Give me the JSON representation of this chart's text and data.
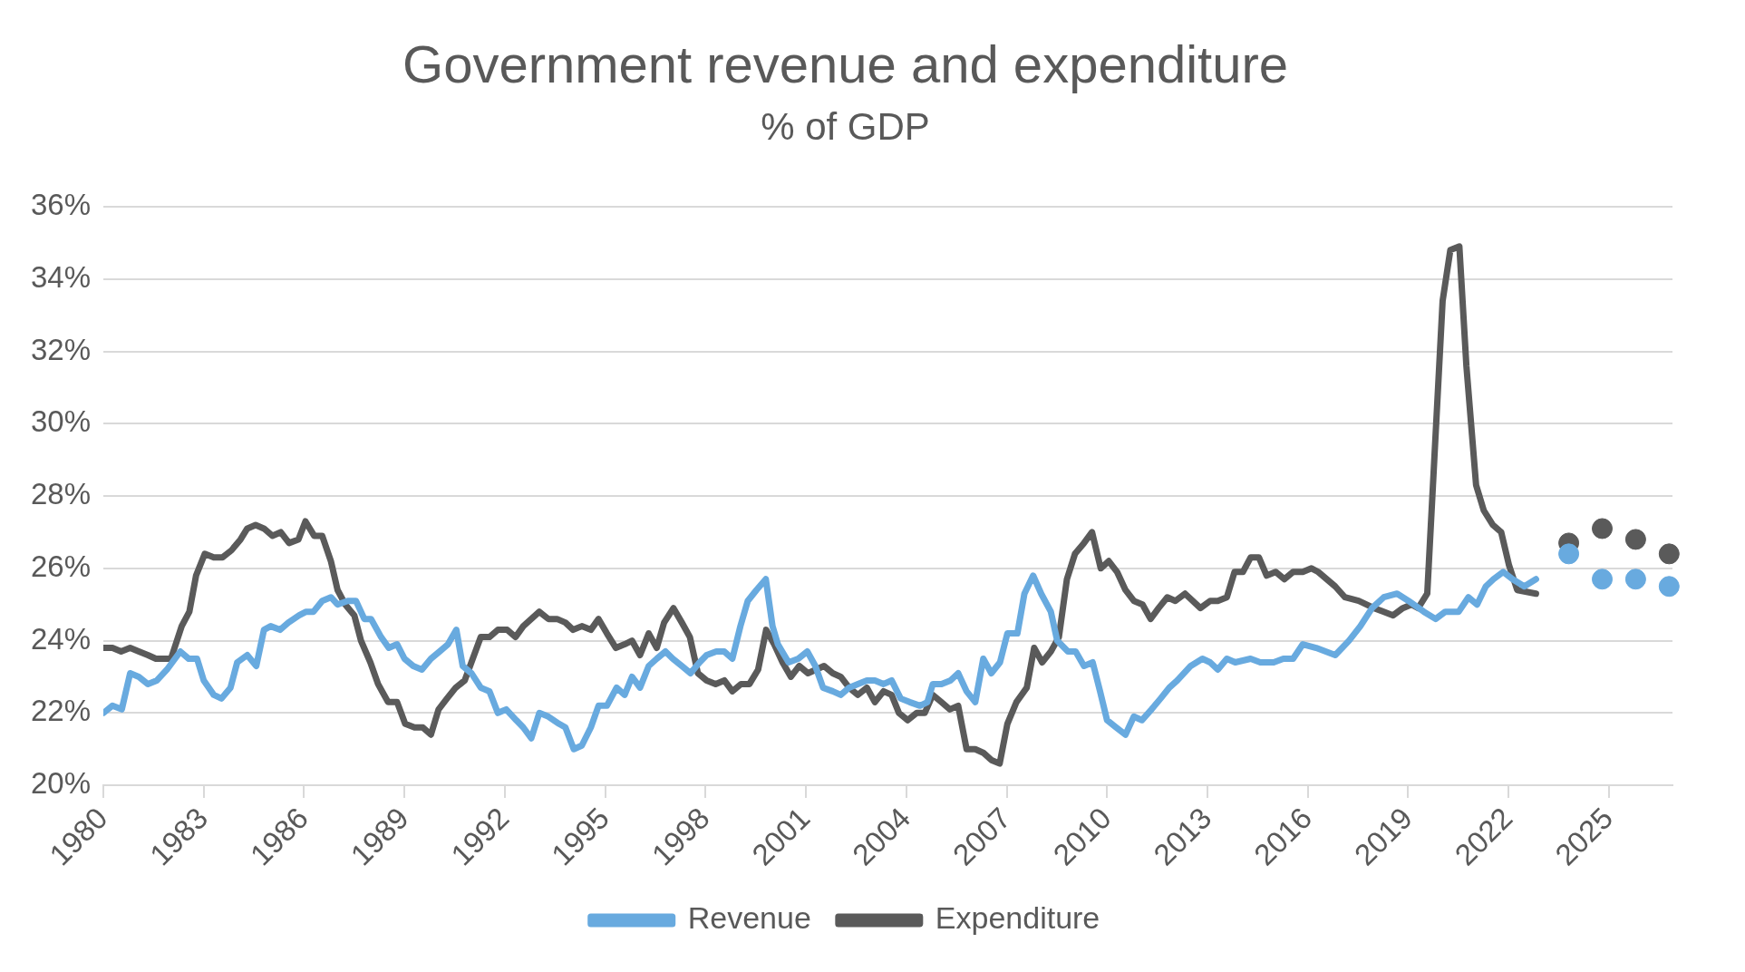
{
  "chart_data": {
    "type": "line",
    "title": "Government revenue and expenditure",
    "subtitle": "% of GDP",
    "xlim": [
      1980,
      2026.9
    ],
    "xticks": [
      1980,
      1983,
      1986,
      1989,
      1992,
      1995,
      1998,
      2001,
      2004,
      2007,
      2010,
      2013,
      2016,
      2019,
      2022,
      2025
    ],
    "ylim": [
      20,
      36
    ],
    "yticks": [
      {
        "value": 20,
        "label": "20%"
      },
      {
        "value": 22,
        "label": "22%"
      },
      {
        "value": 24,
        "label": "24%"
      },
      {
        "value": 26,
        "label": "26%"
      },
      {
        "value": 28,
        "label": "28%"
      },
      {
        "value": 30,
        "label": "30%"
      },
      {
        "value": 32,
        "label": "32%"
      },
      {
        "value": 34,
        "label": "34%"
      },
      {
        "value": 36,
        "label": "36%"
      }
    ],
    "grid": "y",
    "legend": "bottom",
    "line_style": "solid",
    "series": [
      {
        "name": "Revenue",
        "type": "line",
        "marker": "none",
        "color": "#68aadf",
        "x": [
          1980.0,
          1980.27,
          1980.55,
          1980.8,
          1981.06,
          1981.33,
          1981.6,
          1981.9,
          1982.3,
          1982.55,
          1982.8,
          1983.0,
          1983.3,
          1983.53,
          1983.8,
          1984.0,
          1984.3,
          1984.57,
          1984.8,
          1985.0,
          1985.28,
          1985.53,
          1985.85,
          1986.06,
          1986.28,
          1986.54,
          1986.8,
          1987.0,
          1987.3,
          1987.55,
          1987.8,
          1988.0,
          1988.3,
          1988.53,
          1988.78,
          1989.0,
          1989.26,
          1989.52,
          1989.79,
          1990.05,
          1990.3,
          1990.55,
          1990.74,
          1991.0,
          1991.28,
          1991.54,
          1991.79,
          1992.04,
          1992.34,
          1992.55,
          1992.79,
          1993.03,
          1993.3,
          1993.62,
          1993.81,
          1994.06,
          1994.3,
          1994.57,
          1994.8,
          1995.05,
          1995.34,
          1995.58,
          1995.8,
          1996.04,
          1996.3,
          1996.54,
          1996.8,
          1997.02,
          1997.29,
          1997.55,
          1997.82,
          1998.03,
          1998.32,
          1998.56,
          1998.8,
          1999.04,
          1999.26,
          1999.52,
          1999.8,
          2000.0,
          2000.16,
          2000.48,
          2000.77,
          2001.04,
          2001.28,
          2001.51,
          2001.8,
          2002.04,
          2002.29,
          2002.55,
          2002.82,
          2003.06,
          2003.32,
          2003.56,
          2003.83,
          2004.1,
          2004.41,
          2004.63,
          2004.79,
          2005.05,
          2005.32,
          2005.55,
          2005.8,
          2006.06,
          2006.3,
          2006.54,
          2006.8,
          2007.02,
          2007.32,
          2007.53,
          2007.79,
          2008.03,
          2008.32,
          2008.51,
          2008.83,
          2009.06,
          2009.31,
          2009.57,
          2009.79,
          2010.0,
          2010.27,
          2010.55,
          2010.8,
          2011.04,
          2011.33,
          2011.6,
          2011.86,
          2012.1,
          2012.5,
          2012.85,
          2013.08,
          2013.31,
          2013.58,
          2013.83,
          2014.29,
          2014.58,
          2014.98,
          2015.27,
          2015.56,
          2015.85,
          2016.25,
          2016.82,
          2017.23,
          2017.57,
          2017.92,
          2018.27,
          2018.67,
          2019.01,
          2019.47,
          2019.82,
          2020.11,
          2020.51,
          2020.8,
          2021.06,
          2021.32,
          2021.55,
          2021.84,
          2022.12,
          2022.47,
          2022.82
        ],
        "values": [
          22.0,
          22.2,
          22.1,
          23.1,
          23.0,
          22.8,
          22.9,
          23.2,
          23.7,
          23.5,
          23.5,
          22.9,
          22.5,
          22.4,
          22.7,
          23.4,
          23.6,
          23.3,
          24.3,
          24.4,
          24.3,
          24.5,
          24.7,
          24.8,
          24.8,
          25.1,
          25.2,
          25.0,
          25.1,
          25.1,
          24.6,
          24.6,
          24.1,
          23.8,
          23.9,
          23.5,
          23.3,
          23.2,
          23.5,
          23.7,
          23.9,
          24.3,
          23.3,
          23.1,
          22.7,
          22.6,
          22.0,
          22.1,
          21.8,
          21.6,
          21.3,
          22.0,
          21.9,
          21.7,
          21.6,
          21.0,
          21.1,
          21.6,
          22.2,
          22.2,
          22.7,
          22.5,
          23.0,
          22.7,
          23.3,
          23.5,
          23.7,
          23.5,
          23.3,
          23.1,
          23.4,
          23.6,
          23.7,
          23.7,
          23.5,
          24.4,
          25.1,
          25.4,
          25.7,
          24.4,
          23.9,
          23.4,
          23.5,
          23.7,
          23.3,
          22.7,
          22.6,
          22.5,
          22.7,
          22.8,
          22.9,
          22.9,
          22.8,
          22.9,
          22.4,
          22.3,
          22.2,
          22.3,
          22.8,
          22.8,
          22.9,
          23.1,
          22.6,
          22.3,
          23.5,
          23.1,
          23.4,
          24.2,
          24.2,
          25.3,
          25.8,
          25.3,
          24.8,
          24.0,
          23.7,
          23.7,
          23.3,
          23.4,
          22.6,
          21.8,
          21.6,
          21.4,
          21.9,
          21.8,
          22.1,
          22.4,
          22.7,
          22.9,
          23.3,
          23.5,
          23.4,
          23.2,
          23.5,
          23.4,
          23.5,
          23.4,
          23.4,
          23.5,
          23.5,
          23.9,
          23.8,
          23.6,
          24.0,
          24.4,
          24.9,
          25.2,
          25.3,
          25.1,
          24.8,
          24.6,
          24.8,
          24.8,
          25.2,
          25.0,
          25.5,
          25.7,
          25.9,
          25.7,
          25.5,
          25.7
        ]
      },
      {
        "name": "Expenditure",
        "type": "line",
        "marker": "none",
        "color": "#5a5a5a",
        "x": [
          1980.0,
          1980.27,
          1980.53,
          1980.8,
          1981.06,
          1981.33,
          1981.57,
          1981.8,
          1982.02,
          1982.34,
          1982.57,
          1982.77,
          1983.03,
          1983.3,
          1983.56,
          1983.83,
          1984.1,
          1984.3,
          1984.55,
          1984.8,
          1985.05,
          1985.3,
          1985.55,
          1985.83,
          1986.04,
          1986.3,
          1986.54,
          1986.8,
          1987.0,
          1987.23,
          1987.5,
          1987.7,
          1987.98,
          1988.21,
          1988.51,
          1988.78,
          1989.02,
          1989.3,
          1989.55,
          1989.79,
          1990.02,
          1990.27,
          1990.53,
          1990.8,
          1991.04,
          1991.28,
          1991.54,
          1991.79,
          1992.07,
          1992.32,
          1992.55,
          1992.79,
          1993.03,
          1993.3,
          1993.56,
          1993.81,
          1994.04,
          1994.3,
          1994.57,
          1994.8,
          1995.05,
          1995.32,
          1995.58,
          1995.8,
          1996.04,
          1996.3,
          1996.54,
          1996.76,
          1997.04,
          1997.29,
          1997.53,
          1997.77,
          1998.03,
          1998.3,
          1998.56,
          1998.8,
          1999.06,
          1999.31,
          1999.57,
          1999.81,
          2000.05,
          2000.3,
          2000.55,
          2000.8,
          2001.06,
          2001.3,
          2001.54,
          2001.8,
          2002.04,
          2002.29,
          2002.55,
          2002.82,
          2003.06,
          2003.32,
          2003.56,
          2003.78,
          2004.04,
          2004.31,
          2004.55,
          2004.79,
          2005.05,
          2005.3,
          2005.55,
          2005.8,
          2006.06,
          2006.3,
          2006.54,
          2006.79,
          2007.02,
          2007.29,
          2007.6,
          2007.82,
          2008.06,
          2008.32,
          2008.56,
          2008.8,
          2009.04,
          2009.31,
          2009.55,
          2009.81,
          2010.05,
          2010.3,
          2010.55,
          2010.8,
          2011.06,
          2011.3,
          2011.54,
          2011.8,
          2012.04,
          2012.33,
          2012.79,
          2013.08,
          2013.31,
          2013.58,
          2013.81,
          2014.06,
          2014.29,
          2014.54,
          2014.77,
          2015.04,
          2015.3,
          2015.56,
          2015.85,
          2016.11,
          2016.31,
          2016.82,
          2017.11,
          2017.52,
          2017.98,
          2018.55,
          2018.84,
          2019.1,
          2019.3,
          2019.57,
          2020.03,
          2020.26,
          2020.53,
          2020.74,
          2021.03,
          2021.26,
          2021.53,
          2021.78,
          2022.01,
          2022.26,
          2022.82
        ],
        "values": [
          23.8,
          23.8,
          23.7,
          23.8,
          23.7,
          23.6,
          23.5,
          23.5,
          23.5,
          24.4,
          24.8,
          25.8,
          26.4,
          26.3,
          26.3,
          26.5,
          26.8,
          27.1,
          27.2,
          27.1,
          26.9,
          27.0,
          26.7,
          26.8,
          27.3,
          26.9,
          26.9,
          26.2,
          25.4,
          25.0,
          24.7,
          24.0,
          23.4,
          22.8,
          22.3,
          22.3,
          21.7,
          21.6,
          21.6,
          21.4,
          22.1,
          22.4,
          22.7,
          22.9,
          23.5,
          24.1,
          24.1,
          24.3,
          24.3,
          24.1,
          24.4,
          24.6,
          24.8,
          24.6,
          24.6,
          24.5,
          24.3,
          24.4,
          24.3,
          24.6,
          24.2,
          23.8,
          23.9,
          24.0,
          23.6,
          24.2,
          23.8,
          24.5,
          24.9,
          24.5,
          24.1,
          23.1,
          22.9,
          22.8,
          22.9,
          22.6,
          22.8,
          22.8,
          23.2,
          24.3,
          23.9,
          23.4,
          23.0,
          23.3,
          23.1,
          23.2,
          23.3,
          23.1,
          23.0,
          22.7,
          22.5,
          22.7,
          22.3,
          22.6,
          22.5,
          22.0,
          21.8,
          22.0,
          22.0,
          22.5,
          22.3,
          22.1,
          22.2,
          21.0,
          21.0,
          20.9,
          20.7,
          20.6,
          21.7,
          22.3,
          22.7,
          23.8,
          23.4,
          23.7,
          24.1,
          25.7,
          26.4,
          26.7,
          27.0,
          26.0,
          26.2,
          25.9,
          25.4,
          25.1,
          25.0,
          24.6,
          24.9,
          25.2,
          25.1,
          25.3,
          24.9,
          25.1,
          25.1,
          25.2,
          25.9,
          25.9,
          26.3,
          26.3,
          25.8,
          25.9,
          25.7,
          25.9,
          25.9,
          26.0,
          25.9,
          25.5,
          25.2,
          25.1,
          24.9,
          24.7,
          24.9,
          25.0,
          24.9,
          25.3,
          33.4,
          34.8,
          34.9,
          31.6,
          28.3,
          27.6,
          27.2,
          27.0,
          26.1,
          25.4,
          25.3
        ]
      },
      {
        "type": "scatter",
        "marker": "circle",
        "color": "#68aadf",
        "x": [
          2023.8,
          2024.8,
          2025.8,
          2026.8
        ],
        "values": [
          26.4,
          25.7,
          25.7,
          25.5
        ]
      },
      {
        "type": "scatter",
        "marker": "circle",
        "color": "#5a5a5a",
        "x": [
          2023.8,
          2024.8,
          2025.8,
          2026.8
        ],
        "values": [
          26.7,
          27.1,
          26.8,
          26.4
        ]
      }
    ]
  }
}
